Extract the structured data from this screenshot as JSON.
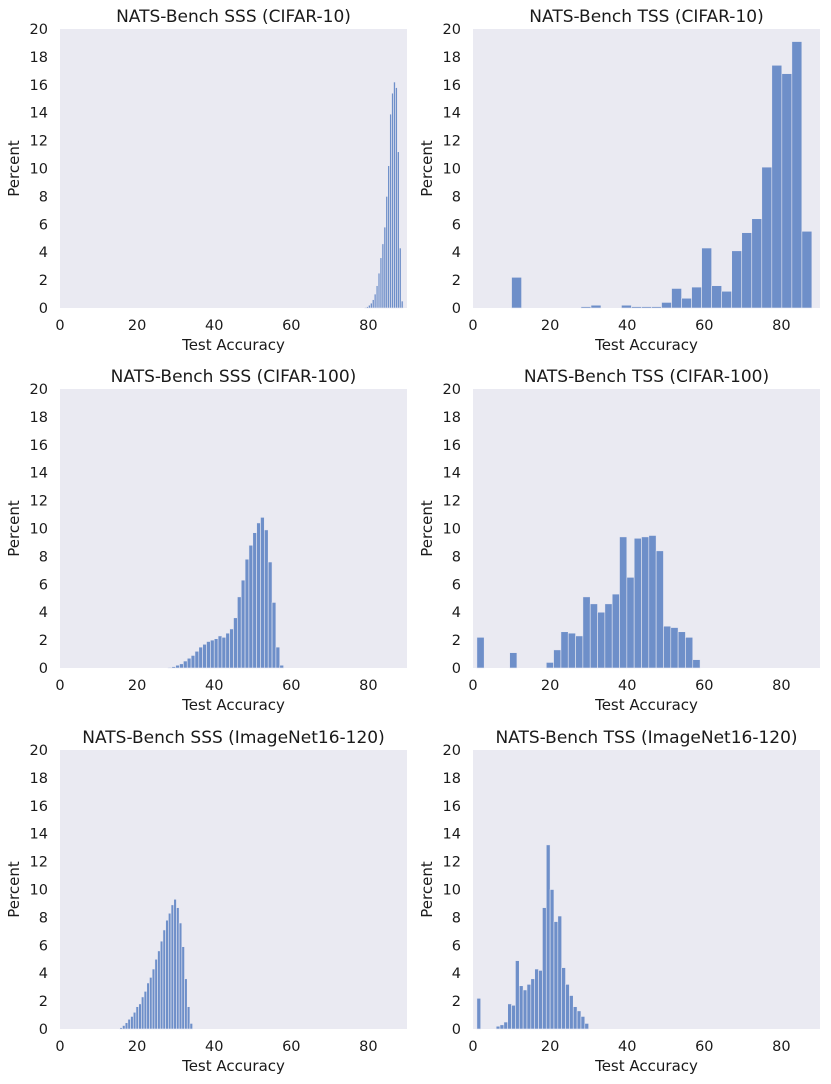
{
  "colors": {
    "bar": "#6e8fc9",
    "plot_background": "#eaeaf2"
  },
  "chart_data": [
    {
      "type": "bar",
      "title": "NATS-Bench SSS (CIFAR-10)",
      "xlabel": "Test Accuracy",
      "ylabel": "Percent",
      "xlim": [
        0,
        90
      ],
      "ylim": [
        0,
        20
      ],
      "xticks": [
        "0",
        "20",
        "40",
        "60",
        "80"
      ],
      "yticks": [
        "0",
        "2",
        "4",
        "6",
        "8",
        "10",
        "12",
        "14",
        "16",
        "18",
        "20"
      ],
      "grid": false,
      "bins": [
        {
          "x0": 79.0,
          "x1": 79.5,
          "y": 0.05
        },
        {
          "x0": 79.5,
          "x1": 80.0,
          "y": 0.1
        },
        {
          "x0": 80.0,
          "x1": 80.5,
          "y": 0.2
        },
        {
          "x0": 80.5,
          "x1": 81.0,
          "y": 0.35
        },
        {
          "x0": 81.0,
          "x1": 81.5,
          "y": 0.6
        },
        {
          "x0": 81.5,
          "x1": 82.0,
          "y": 1.0
        },
        {
          "x0": 82.0,
          "x1": 82.5,
          "y": 1.6
        },
        {
          "x0": 82.5,
          "x1": 83.0,
          "y": 2.5
        },
        {
          "x0": 83.0,
          "x1": 83.5,
          "y": 3.6
        },
        {
          "x0": 83.5,
          "x1": 84.0,
          "y": 4.6
        },
        {
          "x0": 84.0,
          "x1": 84.5,
          "y": 5.8
        },
        {
          "x0": 84.5,
          "x1": 85.0,
          "y": 8.0
        },
        {
          "x0": 85.0,
          "x1": 85.5,
          "y": 10.2
        },
        {
          "x0": 85.5,
          "x1": 86.0,
          "y": 13.9
        },
        {
          "x0": 86.0,
          "x1": 86.5,
          "y": 15.4
        },
        {
          "x0": 86.5,
          "x1": 87.0,
          "y": 16.2
        },
        {
          "x0": 87.0,
          "x1": 87.5,
          "y": 15.8
        },
        {
          "x0": 87.5,
          "x1": 88.0,
          "y": 11.2
        },
        {
          "x0": 88.0,
          "x1": 88.5,
          "y": 4.3
        },
        {
          "x0": 88.5,
          "x1": 89.0,
          "y": 0.5
        }
      ]
    },
    {
      "type": "bar",
      "title": "NATS-Bench TSS (CIFAR-10)",
      "xlabel": "Test Accuracy",
      "ylabel": "Percent",
      "xlim": [
        0,
        90
      ],
      "ylim": [
        0,
        20
      ],
      "xticks": [
        "0",
        "20",
        "40",
        "60",
        "80"
      ],
      "yticks": [
        "0",
        "2",
        "4",
        "6",
        "8",
        "10",
        "12",
        "14",
        "16",
        "18",
        "20"
      ],
      "grid": false,
      "bins": [
        {
          "x0": 10.0,
          "x1": 12.6,
          "y": 2.2
        },
        {
          "x0": 28.0,
          "x1": 30.6,
          "y": 0.1
        },
        {
          "x0": 30.6,
          "x1": 33.2,
          "y": 0.2
        },
        {
          "x0": 38.5,
          "x1": 41.1,
          "y": 0.2
        },
        {
          "x0": 41.1,
          "x1": 43.7,
          "y": 0.1
        },
        {
          "x0": 43.7,
          "x1": 46.3,
          "y": 0.1
        },
        {
          "x0": 46.3,
          "x1": 48.9,
          "y": 0.1
        },
        {
          "x0": 48.9,
          "x1": 51.5,
          "y": 0.4
        },
        {
          "x0": 51.5,
          "x1": 54.1,
          "y": 1.4
        },
        {
          "x0": 54.1,
          "x1": 56.7,
          "y": 0.7
        },
        {
          "x0": 56.7,
          "x1": 59.3,
          "y": 1.5
        },
        {
          "x0": 59.3,
          "x1": 61.9,
          "y": 4.3
        },
        {
          "x0": 61.9,
          "x1": 64.5,
          "y": 1.6
        },
        {
          "x0": 64.5,
          "x1": 67.1,
          "y": 1.2
        },
        {
          "x0": 67.1,
          "x1": 69.7,
          "y": 4.1
        },
        {
          "x0": 69.7,
          "x1": 72.3,
          "y": 5.4
        },
        {
          "x0": 72.3,
          "x1": 74.9,
          "y": 6.4
        },
        {
          "x0": 74.9,
          "x1": 77.5,
          "y": 10.1
        },
        {
          "x0": 77.5,
          "x1": 80.1,
          "y": 17.4
        },
        {
          "x0": 80.1,
          "x1": 82.7,
          "y": 16.8
        },
        {
          "x0": 82.7,
          "x1": 85.3,
          "y": 19.1
        },
        {
          "x0": 85.3,
          "x1": 87.9,
          "y": 5.5
        }
      ]
    },
    {
      "type": "bar",
      "title": "NATS-Bench SSS (CIFAR-100)",
      "xlabel": "Test Accuracy",
      "ylabel": "Percent",
      "xlim": [
        0,
        90
      ],
      "ylim": [
        0,
        20
      ],
      "xticks": [
        "0",
        "20",
        "40",
        "60",
        "80"
      ],
      "yticks": [
        "0",
        "2",
        "4",
        "6",
        "8",
        "10",
        "12",
        "14",
        "16",
        "18",
        "20"
      ],
      "grid": false,
      "bins": [
        {
          "x0": 28.0,
          "x1": 29.0,
          "y": 0.05
        },
        {
          "x0": 29.0,
          "x1": 30.0,
          "y": 0.1
        },
        {
          "x0": 30.0,
          "x1": 31.0,
          "y": 0.2
        },
        {
          "x0": 31.0,
          "x1": 32.0,
          "y": 0.3
        },
        {
          "x0": 32.0,
          "x1": 33.0,
          "y": 0.5
        },
        {
          "x0": 33.0,
          "x1": 34.0,
          "y": 0.7
        },
        {
          "x0": 34.0,
          "x1": 35.0,
          "y": 0.9
        },
        {
          "x0": 35.0,
          "x1": 36.0,
          "y": 1.2
        },
        {
          "x0": 36.0,
          "x1": 37.0,
          "y": 1.5
        },
        {
          "x0": 37.0,
          "x1": 38.0,
          "y": 1.7
        },
        {
          "x0": 38.0,
          "x1": 39.0,
          "y": 1.9
        },
        {
          "x0": 39.0,
          "x1": 40.0,
          "y": 2.0
        },
        {
          "x0": 40.0,
          "x1": 41.0,
          "y": 2.1
        },
        {
          "x0": 41.0,
          "x1": 42.0,
          "y": 2.3
        },
        {
          "x0": 42.0,
          "x1": 43.0,
          "y": 2.2
        },
        {
          "x0": 43.0,
          "x1": 44.0,
          "y": 2.5
        },
        {
          "x0": 44.0,
          "x1": 45.0,
          "y": 2.8
        },
        {
          "x0": 45.0,
          "x1": 46.0,
          "y": 3.6
        },
        {
          "x0": 46.0,
          "x1": 47.0,
          "y": 5.1
        },
        {
          "x0": 47.0,
          "x1": 48.0,
          "y": 6.3
        },
        {
          "x0": 48.0,
          "x1": 49.0,
          "y": 7.8
        },
        {
          "x0": 49.0,
          "x1": 50.0,
          "y": 8.8
        },
        {
          "x0": 50.0,
          "x1": 51.0,
          "y": 9.7
        },
        {
          "x0": 51.0,
          "x1": 52.0,
          "y": 10.4
        },
        {
          "x0": 52.0,
          "x1": 53.0,
          "y": 10.8
        },
        {
          "x0": 53.0,
          "x1": 54.0,
          "y": 9.9
        },
        {
          "x0": 54.0,
          "x1": 55.0,
          "y": 7.6
        },
        {
          "x0": 55.0,
          "x1": 56.0,
          "y": 4.7
        },
        {
          "x0": 56.0,
          "x1": 57.0,
          "y": 1.5
        },
        {
          "x0": 57.0,
          "x1": 58.0,
          "y": 0.2
        }
      ]
    },
    {
      "type": "bar",
      "title": "NATS-Bench TSS (CIFAR-100)",
      "xlabel": "Test Accuracy",
      "ylabel": "Percent",
      "xlim": [
        0,
        90
      ],
      "ylim": [
        0,
        20
      ],
      "xticks": [
        "0",
        "20",
        "40",
        "60",
        "80"
      ],
      "yticks": [
        "0",
        "2",
        "4",
        "6",
        "8",
        "10",
        "12",
        "14",
        "16",
        "18",
        "20"
      ],
      "grid": false,
      "bins": [
        {
          "x0": 1.0,
          "x1": 2.9,
          "y": 2.2
        },
        {
          "x0": 9.5,
          "x1": 11.4,
          "y": 1.1
        },
        {
          "x0": 19.0,
          "x1": 20.9,
          "y": 0.4
        },
        {
          "x0": 20.9,
          "x1": 22.8,
          "y": 1.3
        },
        {
          "x0": 22.8,
          "x1": 24.7,
          "y": 2.6
        },
        {
          "x0": 24.7,
          "x1": 26.6,
          "y": 2.5
        },
        {
          "x0": 26.6,
          "x1": 28.5,
          "y": 2.3
        },
        {
          "x0": 28.5,
          "x1": 30.4,
          "y": 5.1
        },
        {
          "x0": 30.4,
          "x1": 32.3,
          "y": 4.6
        },
        {
          "x0": 32.3,
          "x1": 34.2,
          "y": 4.0
        },
        {
          "x0": 34.2,
          "x1": 36.1,
          "y": 4.6
        },
        {
          "x0": 36.1,
          "x1": 38.0,
          "y": 5.3
        },
        {
          "x0": 38.0,
          "x1": 39.9,
          "y": 9.4
        },
        {
          "x0": 39.9,
          "x1": 41.8,
          "y": 6.5
        },
        {
          "x0": 41.8,
          "x1": 43.7,
          "y": 9.3
        },
        {
          "x0": 43.7,
          "x1": 45.6,
          "y": 9.4
        },
        {
          "x0": 45.6,
          "x1": 47.5,
          "y": 9.5
        },
        {
          "x0": 47.5,
          "x1": 49.4,
          "y": 8.4
        },
        {
          "x0": 49.4,
          "x1": 51.3,
          "y": 3.0
        },
        {
          "x0": 51.3,
          "x1": 53.2,
          "y": 2.9
        },
        {
          "x0": 53.2,
          "x1": 55.1,
          "y": 2.6
        },
        {
          "x0": 55.1,
          "x1": 57.0,
          "y": 2.2
        },
        {
          "x0": 57.0,
          "x1": 58.9,
          "y": 0.6
        }
      ]
    },
    {
      "type": "bar",
      "title": "NATS-Bench SSS (ImageNet16-120)",
      "xlabel": "Test Accuracy",
      "ylabel": "Percent",
      "xlim": [
        0,
        90
      ],
      "ylim": [
        0,
        20
      ],
      "xticks": [
        "0",
        "20",
        "40",
        "60",
        "80"
      ],
      "yticks": [
        "0",
        "2",
        "4",
        "6",
        "8",
        "10",
        "12",
        "14",
        "16",
        "18",
        "20"
      ],
      "grid": false,
      "bins": [
        {
          "x0": 15.5,
          "x1": 16.2,
          "y": 0.1
        },
        {
          "x0": 16.2,
          "x1": 16.9,
          "y": 0.25
        },
        {
          "x0": 16.9,
          "x1": 17.6,
          "y": 0.45
        },
        {
          "x0": 17.6,
          "x1": 18.3,
          "y": 0.7
        },
        {
          "x0": 18.3,
          "x1": 19.0,
          "y": 0.9
        },
        {
          "x0": 19.0,
          "x1": 19.7,
          "y": 1.2
        },
        {
          "x0": 19.7,
          "x1": 20.4,
          "y": 1.6
        },
        {
          "x0": 20.4,
          "x1": 21.1,
          "y": 1.8
        },
        {
          "x0": 21.1,
          "x1": 21.8,
          "y": 2.3
        },
        {
          "x0": 21.8,
          "x1": 22.5,
          "y": 2.7
        },
        {
          "x0": 22.5,
          "x1": 23.2,
          "y": 3.3
        },
        {
          "x0": 23.2,
          "x1": 23.9,
          "y": 3.7
        },
        {
          "x0": 23.9,
          "x1": 24.6,
          "y": 4.3
        },
        {
          "x0": 24.6,
          "x1": 25.3,
          "y": 5.0
        },
        {
          "x0": 25.3,
          "x1": 26.0,
          "y": 5.6
        },
        {
          "x0": 26.0,
          "x1": 26.7,
          "y": 6.3
        },
        {
          "x0": 26.7,
          "x1": 27.4,
          "y": 7.1
        },
        {
          "x0": 27.4,
          "x1": 28.1,
          "y": 7.8
        },
        {
          "x0": 28.1,
          "x1": 28.8,
          "y": 8.3
        },
        {
          "x0": 28.8,
          "x1": 29.5,
          "y": 8.9
        },
        {
          "x0": 29.5,
          "x1": 30.2,
          "y": 9.3
        },
        {
          "x0": 30.2,
          "x1": 30.9,
          "y": 8.7
        },
        {
          "x0": 30.9,
          "x1": 31.6,
          "y": 7.6
        },
        {
          "x0": 31.6,
          "x1": 32.3,
          "y": 5.9
        },
        {
          "x0": 32.3,
          "x1": 33.0,
          "y": 3.6
        },
        {
          "x0": 33.0,
          "x1": 33.7,
          "y": 1.6
        },
        {
          "x0": 33.7,
          "x1": 34.4,
          "y": 0.4
        }
      ]
    },
    {
      "type": "bar",
      "title": "NATS-Bench TSS (ImageNet16-120)",
      "xlabel": "Test Accuracy",
      "ylabel": "Percent",
      "xlim": [
        0,
        90
      ],
      "ylim": [
        0,
        20
      ],
      "xticks": [
        "0",
        "20",
        "40",
        "60",
        "80"
      ],
      "yticks": [
        "0",
        "2",
        "4",
        "6",
        "8",
        "10",
        "12",
        "14",
        "16",
        "18",
        "20"
      ],
      "grid": false,
      "bins": [
        {
          "x0": 1.0,
          "x1": 2.0,
          "y": 2.2
        },
        {
          "x0": 6.0,
          "x1": 7.0,
          "y": 0.2
        },
        {
          "x0": 7.0,
          "x1": 8.0,
          "y": 0.3
        },
        {
          "x0": 8.0,
          "x1": 9.0,
          "y": 0.5
        },
        {
          "x0": 9.0,
          "x1": 10.0,
          "y": 1.8
        },
        {
          "x0": 10.0,
          "x1": 11.0,
          "y": 1.7
        },
        {
          "x0": 11.0,
          "x1": 12.0,
          "y": 4.9
        },
        {
          "x0": 12.0,
          "x1": 13.0,
          "y": 3.1
        },
        {
          "x0": 13.0,
          "x1": 14.0,
          "y": 2.8
        },
        {
          "x0": 14.0,
          "x1": 15.0,
          "y": 3.2
        },
        {
          "x0": 15.0,
          "x1": 16.0,
          "y": 3.6
        },
        {
          "x0": 16.0,
          "x1": 17.0,
          "y": 4.3
        },
        {
          "x0": 17.0,
          "x1": 18.0,
          "y": 4.2
        },
        {
          "x0": 18.0,
          "x1": 19.0,
          "y": 8.7
        },
        {
          "x0": 19.0,
          "x1": 20.0,
          "y": 13.2
        },
        {
          "x0": 20.0,
          "x1": 21.0,
          "y": 10.0
        },
        {
          "x0": 21.0,
          "x1": 22.0,
          "y": 7.7
        },
        {
          "x0": 22.0,
          "x1": 23.0,
          "y": 8.1
        },
        {
          "x0": 23.0,
          "x1": 24.0,
          "y": 4.4
        },
        {
          "x0": 24.0,
          "x1": 25.0,
          "y": 3.2
        },
        {
          "x0": 25.0,
          "x1": 26.0,
          "y": 2.4
        },
        {
          "x0": 26.0,
          "x1": 27.0,
          "y": 1.6
        },
        {
          "x0": 27.0,
          "x1": 28.0,
          "y": 1.3
        },
        {
          "x0": 28.0,
          "x1": 29.0,
          "y": 0.9
        },
        {
          "x0": 29.0,
          "x1": 30.0,
          "y": 0.4
        }
      ]
    }
  ]
}
